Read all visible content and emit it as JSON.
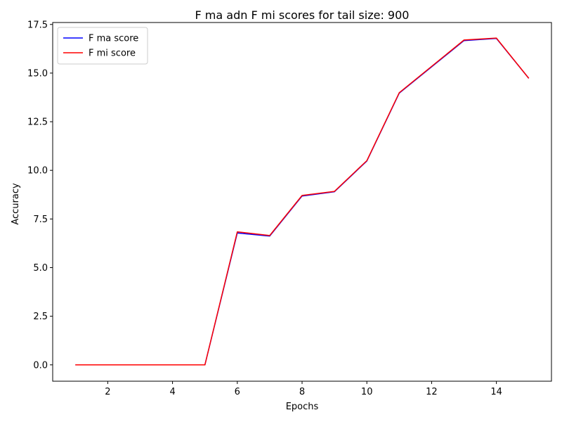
{
  "chart_data": {
    "type": "line",
    "title": "F ma adn F mi scores for tail size: 900",
    "xlabel": "Epochs",
    "ylabel": "Accuracy",
    "xlim": [
      0.3,
      15.7
    ],
    "ylim": [
      -0.84,
      17.6
    ],
    "xticks": [
      2,
      4,
      6,
      8,
      10,
      12,
      14
    ],
    "xtick_labels": [
      "2",
      "4",
      "6",
      "8",
      "10",
      "12",
      "14"
    ],
    "yticks": [
      0,
      2.5,
      5,
      7.5,
      10,
      12.5,
      15,
      17.5
    ],
    "ytick_labels": [
      "0.0",
      "2.5",
      "5.0",
      "7.5",
      "10.0",
      "12.5",
      "15.0",
      "17.5"
    ],
    "grid": false,
    "legend_position": "upper-left",
    "x": [
      1,
      2,
      3,
      4,
      5,
      6,
      7,
      8,
      9,
      10,
      11,
      13,
      14,
      15
    ],
    "series": [
      {
        "name": "F ma score",
        "color": "#0000ff",
        "values": [
          0,
          0,
          0,
          0,
          0,
          6.78,
          6.62,
          8.68,
          8.9,
          10.48,
          13.97,
          16.67,
          16.78,
          14.73
        ]
      },
      {
        "name": "F mi score",
        "color": "#ff0000",
        "values": [
          0,
          0,
          0,
          0,
          0,
          6.84,
          6.65,
          8.71,
          8.92,
          10.5,
          13.99,
          16.7,
          16.8,
          14.73
        ]
      }
    ]
  }
}
